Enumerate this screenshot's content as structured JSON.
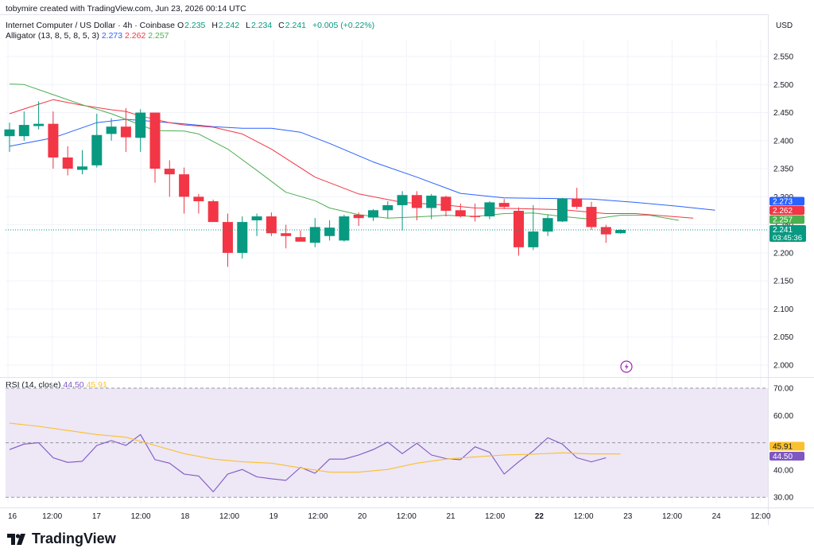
{
  "header": {
    "credit": "tobymire created with TradingView.com, Jun 23, 2026 00:14 UTC",
    "symbol": "Internet Computer / US Dollar · 4h · Coinbase",
    "open_label": "O",
    "open": "2.235",
    "high_label": "H",
    "high": "2.242",
    "low_label": "L",
    "low": "2.234",
    "close_label": "C",
    "close": "2.241",
    "change": "+0.005 (+0.22%)",
    "alligator_label": "Alligator (13, 8, 5, 8, 5, 3)",
    "alligator_jaw": "2.273",
    "alligator_teeth": "2.262",
    "alligator_lips": "2.257",
    "rsi_label": "RSI (14, close)",
    "rsi_value": "44.50",
    "rsi_ma": "45.91"
  },
  "currency": "USD",
  "price_badges": {
    "jaw": "2.273",
    "teeth": "2.262",
    "lips": "2.257",
    "last": "2.241",
    "countdown": "03:45:36"
  },
  "rsi_badges": {
    "ma": "45.91",
    "rsi": "44.50"
  },
  "brand": "TradingView",
  "colors": {
    "up": "#089981",
    "down": "#f23645",
    "jaw": "#2962ff",
    "teeth": "#f23645",
    "lips": "#4caf50",
    "rsi": "#7e57c2",
    "rsi_ma": "#fbc02d",
    "rsi_band": "#ede7f6"
  },
  "chart_data": [
    {
      "type": "candlestick",
      "title": "Internet Computer / US Dollar · 4h · Coinbase",
      "y_axis_label": "USD",
      "ylim": [
        1.985,
        2.62
      ],
      "y_ticks": [
        "2.550",
        "2.500",
        "2.450",
        "2.400",
        "2.350",
        "2.300",
        "2.250",
        "2.200",
        "2.150",
        "2.100",
        "2.050",
        "2.000"
      ],
      "x_ticks": [
        "16",
        "12:00",
        "17",
        "12:00",
        "18",
        "12:00",
        "19",
        "12:00",
        "20",
        "12:00",
        "21",
        "12:00",
        "22",
        "12:00",
        "23",
        "12:00",
        "24",
        "12:00"
      ],
      "candles": [
        {
          "o": 2.408,
          "h": 2.432,
          "l": 2.38,
          "c": 2.42
        },
        {
          "o": 2.408,
          "h": 2.452,
          "l": 2.4,
          "c": 2.428
        },
        {
          "o": 2.426,
          "h": 2.47,
          "l": 2.42,
          "c": 2.43
        },
        {
          "o": 2.43,
          "h": 2.452,
          "l": 2.35,
          "c": 2.37
        },
        {
          "o": 2.37,
          "h": 2.39,
          "l": 2.338,
          "c": 2.35
        },
        {
          "o": 2.348,
          "h": 2.383,
          "l": 2.34,
          "c": 2.354
        },
        {
          "o": 2.356,
          "h": 2.448,
          "l": 2.352,
          "c": 2.41
        },
        {
          "o": 2.412,
          "h": 2.44,
          "l": 2.4,
          "c": 2.425
        },
        {
          "o": 2.425,
          "h": 2.458,
          "l": 2.38,
          "c": 2.406
        },
        {
          "o": 2.405,
          "h": 2.456,
          "l": 2.38,
          "c": 2.45
        },
        {
          "o": 2.45,
          "h": 2.45,
          "l": 2.325,
          "c": 2.35
        },
        {
          "o": 2.35,
          "h": 2.365,
          "l": 2.3,
          "c": 2.34
        },
        {
          "o": 2.34,
          "h": 2.352,
          "l": 2.27,
          "c": 2.3
        },
        {
          "o": 2.3,
          "h": 2.305,
          "l": 2.27,
          "c": 2.292
        },
        {
          "o": 2.292,
          "h": 2.295,
          "l": 2.258,
          "c": 2.255
        },
        {
          "o": 2.255,
          "h": 2.27,
          "l": 2.175,
          "c": 2.2
        },
        {
          "o": 2.2,
          "h": 2.265,
          "l": 2.19,
          "c": 2.255
        },
        {
          "o": 2.258,
          "h": 2.27,
          "l": 2.23,
          "c": 2.265
        },
        {
          "o": 2.265,
          "h": 2.272,
          "l": 2.23,
          "c": 2.235
        },
        {
          "o": 2.235,
          "h": 2.25,
          "l": 2.208,
          "c": 2.23
        },
        {
          "o": 2.228,
          "h": 2.24,
          "l": 2.22,
          "c": 2.22
        },
        {
          "o": 2.218,
          "h": 2.262,
          "l": 2.21,
          "c": 2.246
        },
        {
          "o": 2.23,
          "h": 2.258,
          "l": 2.222,
          "c": 2.245
        },
        {
          "o": 2.222,
          "h": 2.268,
          "l": 2.22,
          "c": 2.265
        },
        {
          "o": 2.268,
          "h": 2.272,
          "l": 2.248,
          "c": 2.262
        },
        {
          "o": 2.263,
          "h": 2.278,
          "l": 2.257,
          "c": 2.276
        },
        {
          "o": 2.276,
          "h": 2.292,
          "l": 2.262,
          "c": 2.285
        },
        {
          "o": 2.285,
          "h": 2.31,
          "l": 2.24,
          "c": 2.303
        },
        {
          "o": 2.303,
          "h": 2.31,
          "l": 2.258,
          "c": 2.28
        },
        {
          "o": 2.28,
          "h": 2.305,
          "l": 2.26,
          "c": 2.302
        },
        {
          "o": 2.3,
          "h": 2.302,
          "l": 2.265,
          "c": 2.275
        },
        {
          "o": 2.276,
          "h": 2.288,
          "l": 2.263,
          "c": 2.265
        },
        {
          "o": 2.266,
          "h": 2.288,
          "l": 2.256,
          "c": 2.265
        },
        {
          "o": 2.265,
          "h": 2.292,
          "l": 2.26,
          "c": 2.29
        },
        {
          "o": 2.289,
          "h": 2.296,
          "l": 2.278,
          "c": 2.282
        },
        {
          "o": 2.275,
          "h": 2.281,
          "l": 2.195,
          "c": 2.21
        },
        {
          "o": 2.21,
          "h": 2.285,
          "l": 2.205,
          "c": 2.238
        },
        {
          "o": 2.238,
          "h": 2.268,
          "l": 2.23,
          "c": 2.262
        },
        {
          "o": 2.256,
          "h": 2.298,
          "l": 2.255,
          "c": 2.297
        },
        {
          "o": 2.297,
          "h": 2.316,
          "l": 2.278,
          "c": 2.282
        },
        {
          "o": 2.282,
          "h": 2.291,
          "l": 2.241,
          "c": 2.246
        },
        {
          "o": 2.246,
          "h": 2.25,
          "l": 2.218,
          "c": 2.233
        },
        {
          "o": 2.235,
          "h": 2.242,
          "l": 2.234,
          "c": 2.241
        }
      ],
      "series": [
        {
          "name": "Jaw",
          "values": [
            [
              0,
              2.39
            ],
            [
              3,
              2.405
            ],
            [
              6,
              2.432
            ],
            [
              8,
              2.438
            ],
            [
              10,
              2.434
            ],
            [
              12,
              2.43
            ],
            [
              14,
              2.425
            ],
            [
              16,
              2.422
            ],
            [
              18,
              2.422
            ],
            [
              20,
              2.415
            ],
            [
              22,
              2.395
            ],
            [
              25,
              2.362
            ],
            [
              28,
              2.335
            ],
            [
              31,
              2.306
            ],
            [
              34,
              2.298
            ],
            [
              37,
              2.297
            ],
            [
              40,
              2.296
            ],
            [
              43,
              2.29
            ],
            [
              46,
              2.283
            ],
            [
              48.5,
              2.276
            ]
          ]
        },
        {
          "name": "Teeth",
          "values": [
            [
              0,
              2.448
            ],
            [
              2,
              2.465
            ],
            [
              3,
              2.473
            ],
            [
              5,
              2.463
            ],
            [
              7,
              2.455
            ],
            [
              8,
              2.452
            ],
            [
              9,
              2.444
            ],
            [
              11,
              2.432
            ],
            [
              12,
              2.428
            ],
            [
              14,
              2.424
            ],
            [
              16,
              2.412
            ],
            [
              18,
              2.385
            ],
            [
              21,
              2.335
            ],
            [
              24,
              2.305
            ],
            [
              27,
              2.29
            ],
            [
              30,
              2.285
            ],
            [
              32,
              2.28
            ],
            [
              35,
              2.279
            ],
            [
              38,
              2.277
            ],
            [
              41,
              2.27
            ],
            [
              43,
              2.27
            ],
            [
              47,
              2.262
            ]
          ]
        },
        {
          "name": "Lips",
          "values": [
            [
              0,
              2.501
            ],
            [
              1,
              2.5
            ],
            [
              3,
              2.482
            ],
            [
              5,
              2.464
            ],
            [
              7,
              2.448
            ],
            [
              8,
              2.438
            ],
            [
              10,
              2.418
            ],
            [
              12,
              2.417
            ],
            [
              13,
              2.412
            ],
            [
              15,
              2.385
            ],
            [
              17,
              2.347
            ],
            [
              19,
              2.308
            ],
            [
              21,
              2.293
            ],
            [
              22,
              2.28
            ],
            [
              24,
              2.268
            ],
            [
              26,
              2.262
            ],
            [
              28,
              2.264
            ],
            [
              30,
              2.267
            ],
            [
              32,
              2.265
            ],
            [
              34,
              2.27
            ],
            [
              36,
              2.271
            ],
            [
              38,
              2.265
            ],
            [
              40,
              2.26
            ],
            [
              42,
              2.267
            ],
            [
              44,
              2.267
            ],
            [
              46,
              2.258
            ]
          ]
        }
      ]
    },
    {
      "type": "line",
      "title": "RSI (14, close)",
      "ylim": [
        28.0,
        72.0
      ],
      "y_ticks": [
        "70.00",
        "60.00",
        "50.00",
        "40.00",
        "30.00"
      ],
      "series": [
        {
          "name": "RSI",
          "values": [
            47.5,
            49.5,
            50.0,
            44.5,
            42.8,
            43.2,
            49.0,
            50.8,
            49.0,
            53.0,
            43.8,
            42.5,
            38.5,
            37.8,
            32.0,
            38.5,
            40.2,
            37.5,
            36.8,
            36.2,
            41.0,
            38.8,
            44.0,
            44.0,
            45.5,
            47.5,
            50.2,
            46.0,
            49.8,
            45.5,
            44.2,
            43.8,
            48.5,
            46.5,
            38.5,
            43.0,
            47.0,
            51.8,
            49.5,
            44.5,
            43.0,
            44.5
          ]
        },
        {
          "name": "RSI MA",
          "values": [
            [
              0,
              57.2
            ],
            [
              2,
              56.0
            ],
            [
              4,
              54.5
            ],
            [
              6,
              53.0
            ],
            [
              8,
              52.0
            ],
            [
              10,
              49.0
            ],
            [
              12,
              46.0
            ],
            [
              14,
              44.0
            ],
            [
              16,
              43.0
            ],
            [
              18,
              42.5
            ],
            [
              20,
              40.8
            ],
            [
              22,
              39.2
            ],
            [
              24,
              39.2
            ],
            [
              26,
              40.2
            ],
            [
              28,
              42.5
            ],
            [
              30,
              44.0
            ],
            [
              32,
              44.8
            ],
            [
              34,
              45.5
            ],
            [
              36,
              45.8
            ],
            [
              38,
              46.3
            ],
            [
              40,
              45.9
            ],
            [
              42,
              45.9
            ]
          ]
        }
      ]
    }
  ]
}
